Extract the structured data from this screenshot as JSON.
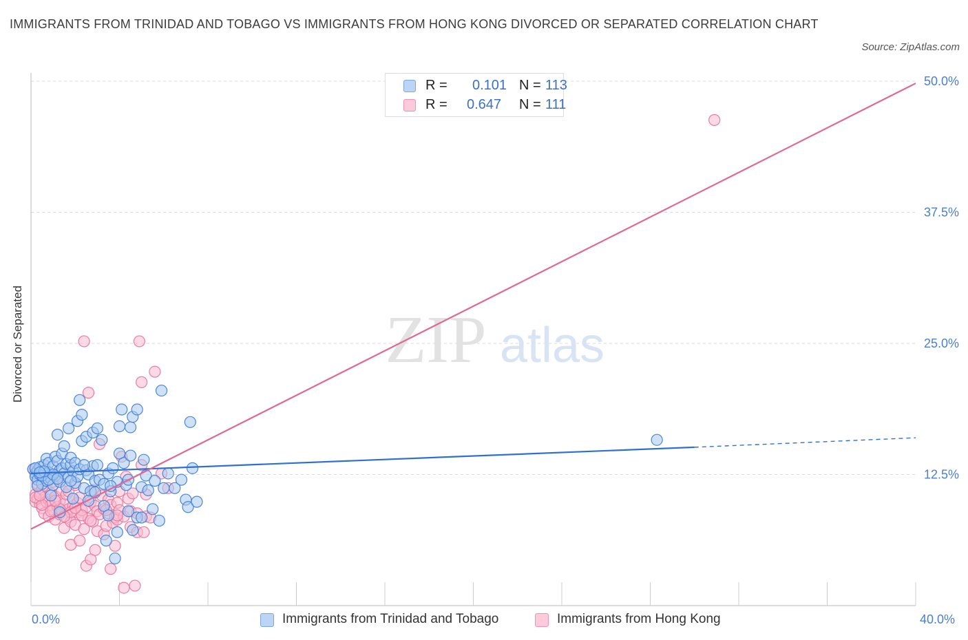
{
  "header": {
    "title": "IMMIGRANTS FROM TRINIDAD AND TOBAGO VS IMMIGRANTS FROM HONG KONG DIVORCED OR SEPARATED CORRELATION CHART",
    "source": "Source: ZipAtlas.com"
  },
  "watermark": {
    "zip": "ZIP",
    "atlas": "atlas"
  },
  "legend": {
    "r_label": "R =",
    "n_label": "N =",
    "rows": [
      {
        "r": "0.101",
        "n": "113"
      },
      {
        "r": "0.647",
        "n": "111"
      }
    ]
  },
  "chart_data": {
    "type": "scatter",
    "xlabel": "",
    "ylabel": "Divorced or Separated",
    "xlim": [
      0,
      40
    ],
    "ylim": [
      0,
      50
    ],
    "x_tick_labels": [
      "0.0%",
      "40.0%"
    ],
    "y_ticks": [
      12.5,
      25.0,
      37.5,
      50.0
    ],
    "y_tick_labels": [
      "12.5%",
      "25.0%",
      "37.5%",
      "50.0%"
    ],
    "grid": true,
    "legend_placement": "bottom",
    "series": [
      {
        "name": "Immigrants from Trinidad and Tobago",
        "color": "#4a86d8",
        "fill": "#a8c8f0",
        "trend": {
          "x0": 0,
          "y0": 12.6,
          "x1": 30,
          "y1": 15.1,
          "dashed_to_x": 40,
          "dashed_to_y": 16.0
        },
        "points": [
          [
            0.1,
            13.0
          ],
          [
            0.2,
            12.6
          ],
          [
            0.2,
            12.3
          ],
          [
            0.3,
            12.9
          ],
          [
            0.3,
            12.0
          ],
          [
            0.4,
            13.2
          ],
          [
            0.4,
            12.5
          ],
          [
            0.5,
            11.6
          ],
          [
            0.5,
            12.8
          ],
          [
            0.6,
            13.4
          ],
          [
            0.6,
            12.2
          ],
          [
            0.7,
            14.0
          ],
          [
            0.7,
            11.9
          ],
          [
            0.8,
            13.6
          ],
          [
            0.8,
            12.7
          ],
          [
            0.9,
            12.1
          ],
          [
            1.0,
            13.3
          ],
          [
            1.0,
            11.5
          ],
          [
            1.1,
            14.2
          ],
          [
            1.1,
            12.4
          ],
          [
            1.2,
            13.8
          ],
          [
            1.2,
            16.3
          ],
          [
            1.3,
            12.9
          ],
          [
            1.3,
            11.8
          ],
          [
            1.4,
            14.5
          ],
          [
            1.4,
            13.1
          ],
          [
            1.5,
            12.6
          ],
          [
            1.5,
            15.2
          ],
          [
            1.6,
            13.5
          ],
          [
            1.6,
            11.3
          ],
          [
            1.7,
            16.9
          ],
          [
            1.7,
            12.2
          ],
          [
            1.8,
            13.4
          ],
          [
            1.8,
            14.1
          ],
          [
            1.9,
            10.2
          ],
          [
            1.9,
            12.8
          ],
          [
            2.0,
            13.6
          ],
          [
            2.0,
            11.7
          ],
          [
            2.1,
            17.6
          ],
          [
            2.1,
            12.3
          ],
          [
            2.2,
            19.6
          ],
          [
            2.2,
            13.0
          ],
          [
            2.3,
            18.2
          ],
          [
            2.3,
            15.7
          ],
          [
            2.4,
            11.2
          ],
          [
            2.5,
            16.1
          ],
          [
            2.5,
            12.9
          ],
          [
            2.6,
            12.5
          ],
          [
            2.7,
            10.9
          ],
          [
            2.8,
            16.5
          ],
          [
            2.8,
            13.3
          ],
          [
            2.9,
            11.9
          ],
          [
            3.0,
            16.9
          ],
          [
            3.0,
            13.4
          ],
          [
            3.1,
            12.0
          ],
          [
            3.2,
            15.8
          ],
          [
            3.3,
            9.5
          ],
          [
            3.3,
            11.6
          ],
          [
            3.4,
            6.2
          ],
          [
            3.5,
            12.6
          ],
          [
            3.5,
            8.6
          ],
          [
            3.6,
            10.9
          ],
          [
            3.7,
            13.1
          ],
          [
            3.8,
            4.5
          ],
          [
            3.9,
            7.0
          ],
          [
            3.9,
            11.8
          ],
          [
            4.0,
            14.5
          ],
          [
            4.0,
            17.1
          ],
          [
            4.1,
            18.7
          ],
          [
            4.2,
            13.6
          ],
          [
            4.3,
            11.5
          ],
          [
            4.4,
            9.0
          ],
          [
            4.5,
            17.0
          ],
          [
            4.5,
            14.3
          ],
          [
            4.6,
            18.0
          ],
          [
            4.6,
            7.2
          ],
          [
            4.8,
            18.7
          ],
          [
            4.8,
            8.4
          ],
          [
            5.0,
            8.4
          ],
          [
            5.0,
            11.3
          ],
          [
            5.1,
            13.9
          ],
          [
            5.2,
            12.4
          ],
          [
            5.3,
            11.0
          ],
          [
            5.5,
            9.2
          ],
          [
            5.6,
            11.9
          ],
          [
            5.8,
            8.1
          ],
          [
            5.9,
            20.5
          ],
          [
            6.0,
            11.2
          ],
          [
            6.2,
            12.6
          ],
          [
            6.5,
            11.2
          ],
          [
            6.8,
            12.0
          ],
          [
            7.0,
            10.1
          ],
          [
            7.1,
            9.4
          ],
          [
            7.2,
            17.5
          ],
          [
            7.3,
            13.1
          ],
          [
            7.5,
            9.9
          ],
          [
            0.3,
            11.4
          ],
          [
            0.9,
            10.5
          ],
          [
            1.3,
            8.9
          ],
          [
            2.6,
            10.0
          ],
          [
            0.5,
            12.4
          ],
          [
            0.8,
            12.0
          ],
          [
            1.0,
            12.5
          ],
          [
            2.4,
            13.4
          ],
          [
            3.6,
            11.4
          ],
          [
            0.2,
            13.1
          ],
          [
            0.6,
            12.8
          ],
          [
            1.8,
            11.9
          ],
          [
            4.4,
            12.0
          ],
          [
            2.9,
            10.8
          ],
          [
            28.3,
            15.8
          ],
          [
            1.2,
            12.1
          ],
          [
            0.4,
            12.7
          ]
        ]
      },
      {
        "name": "Immigrants from Hong Kong",
        "color": "#e97ca0",
        "fill": "#f8bcd0",
        "trend": {
          "x0": 0,
          "y0": 7.3,
          "x1": 40,
          "y1": 49.8
        },
        "points": [
          [
            0.1,
            13.0
          ],
          [
            0.2,
            10.6
          ],
          [
            0.2,
            9.9
          ],
          [
            0.3,
            11.6
          ],
          [
            0.3,
            10.2
          ],
          [
            0.4,
            9.7
          ],
          [
            0.4,
            10.8
          ],
          [
            0.5,
            11.1
          ],
          [
            0.5,
            9.3
          ],
          [
            0.6,
            10.3
          ],
          [
            0.6,
            8.8
          ],
          [
            0.7,
            11.4
          ],
          [
            0.7,
            9.9
          ],
          [
            0.8,
            10.1
          ],
          [
            0.8,
            8.5
          ],
          [
            0.9,
            9.6
          ],
          [
            0.9,
            10.7
          ],
          [
            1.0,
            9.1
          ],
          [
            1.0,
            11.8
          ],
          [
            1.1,
            8.2
          ],
          [
            1.1,
            10.4
          ],
          [
            1.2,
            9.4
          ],
          [
            1.2,
            12.3
          ],
          [
            1.3,
            8.7
          ],
          [
            1.3,
            10.0
          ],
          [
            1.4,
            9.0
          ],
          [
            1.4,
            11.0
          ],
          [
            1.5,
            7.4
          ],
          [
            1.5,
            9.7
          ],
          [
            1.6,
            10.6
          ],
          [
            1.6,
            8.4
          ],
          [
            1.7,
            9.2
          ],
          [
            1.7,
            10.9
          ],
          [
            1.8,
            8.0
          ],
          [
            1.8,
            5.8
          ],
          [
            1.9,
            9.5
          ],
          [
            1.9,
            10.2
          ],
          [
            2.0,
            7.7
          ],
          [
            2.0,
            11.5
          ],
          [
            2.1,
            8.9
          ],
          [
            2.1,
            9.8
          ],
          [
            2.2,
            6.2
          ],
          [
            2.2,
            10.3
          ],
          [
            2.3,
            8.6
          ],
          [
            2.3,
            9.1
          ],
          [
            2.4,
            7.3
          ],
          [
            2.4,
            25.2
          ],
          [
            2.5,
            3.8
          ],
          [
            2.5,
            9.4
          ],
          [
            2.6,
            20.3
          ],
          [
            2.6,
            8.3
          ],
          [
            2.7,
            4.4
          ],
          [
            2.7,
            9.9
          ],
          [
            2.8,
            8.0
          ],
          [
            2.8,
            11.0
          ],
          [
            2.9,
            5.3
          ],
          [
            2.9,
            9.5
          ],
          [
            3.0,
            7.1
          ],
          [
            3.0,
            9.0
          ],
          [
            3.1,
            15.4
          ],
          [
            3.1,
            8.7
          ],
          [
            3.2,
            10.5
          ],
          [
            3.3,
            6.8
          ],
          [
            3.3,
            9.2
          ],
          [
            3.4,
            7.6
          ],
          [
            3.5,
            8.8
          ],
          [
            3.5,
            10.1
          ],
          [
            3.6,
            3.5
          ],
          [
            3.6,
            9.6
          ],
          [
            3.7,
            7.9
          ],
          [
            3.8,
            8.4
          ],
          [
            3.8,
            5.7
          ],
          [
            3.9,
            9.8
          ],
          [
            3.9,
            8.2
          ],
          [
            4.0,
            10.9
          ],
          [
            4.0,
            9.1
          ],
          [
            4.1,
            14.2
          ],
          [
            4.2,
            1.7
          ],
          [
            4.2,
            8.5
          ],
          [
            4.3,
            12.3
          ],
          [
            4.4,
            10.2
          ],
          [
            4.5,
            7.5
          ],
          [
            4.5,
            9.0
          ],
          [
            4.6,
            10.7
          ],
          [
            4.7,
            1.9
          ],
          [
            4.8,
            7.0
          ],
          [
            4.8,
            8.8
          ],
          [
            4.9,
            25.2
          ],
          [
            5.0,
            21.3
          ],
          [
            5.0,
            13.4
          ],
          [
            5.1,
            7.0
          ],
          [
            5.2,
            8.5
          ],
          [
            5.2,
            10.6
          ],
          [
            5.4,
            8.4
          ],
          [
            5.6,
            22.3
          ],
          [
            5.9,
            12.6
          ],
          [
            6.2,
            11.2
          ],
          [
            0.2,
            10.3
          ],
          [
            0.5,
            9.6
          ],
          [
            0.9,
            9.0
          ],
          [
            1.3,
            9.2
          ],
          [
            1.8,
            8.9
          ],
          [
            2.3,
            8.6
          ],
          [
            3.4,
            9.1
          ],
          [
            0.4,
            10.5
          ],
          [
            1.1,
            10.0
          ],
          [
            2.0,
            9.3
          ],
          [
            2.7,
            8.1
          ],
          [
            3.9,
            8.6
          ],
          [
            1.5,
            8.5
          ],
          [
            30.9,
            46.3
          ]
        ]
      }
    ]
  }
}
